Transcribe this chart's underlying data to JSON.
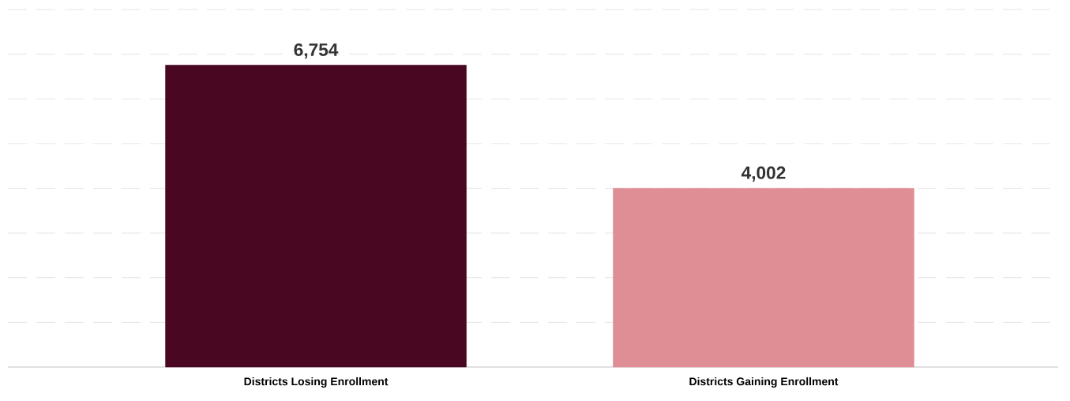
{
  "chart_data": {
    "type": "bar",
    "categories": [
      "Districts Losing Enrollment",
      "Districts Gaining Enrollment"
    ],
    "values": [
      6754,
      4002
    ],
    "colors": [
      "#4a0722",
      "#e08e95"
    ],
    "value_labels": [
      "6,754",
      "4,002"
    ],
    "ylim": [
      0,
      8000
    ],
    "yticks": [
      {
        "value": 1000,
        "label": null
      },
      {
        "value": 2000,
        "label": null
      },
      {
        "value": 3000,
        "label": null
      },
      {
        "value": 4000,
        "label": null
      },
      {
        "value": 5000,
        "label": null
      },
      {
        "value": 6000,
        "label": null
      },
      {
        "value": 7000,
        "label": null
      },
      {
        "value": 8000,
        "label": null
      }
    ],
    "tick_labels": "x",
    "grid": "y"
  }
}
